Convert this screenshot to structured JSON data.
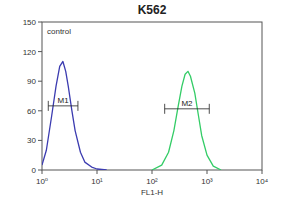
{
  "chart_data": {
    "type": "line",
    "title": "K562",
    "annotation": "control",
    "x_label": "FL1-H",
    "log": "x",
    "xlim": [
      1,
      10000
    ],
    "xticks": [
      {
        "value": 1,
        "label": "10⁰"
      },
      {
        "value": 10,
        "label": "10¹"
      },
      {
        "value": 100,
        "label": "10²"
      },
      {
        "value": 1000,
        "label": "10³"
      },
      {
        "value": 10000,
        "label": "10⁴"
      }
    ],
    "ylim": [
      0,
      150
    ],
    "yticks": [
      0,
      30,
      60,
      90,
      120,
      150
    ],
    "series": [
      {
        "color": "#3b3bb0",
        "x": [
          1,
          1.2,
          1.5,
          1.8,
          2.1,
          2.4,
          2.7,
          3,
          3.5,
          4,
          5,
          6,
          8,
          10,
          15
        ],
        "values": [
          5,
          20,
          55,
          85,
          105,
          110,
          100,
          85,
          60,
          40,
          18,
          8,
          3,
          1,
          0
        ]
      },
      {
        "color": "#33cc66",
        "x": [
          100,
          150,
          200,
          250,
          300,
          350,
          400,
          450,
          500,
          600,
          700,
          800,
          1000,
          1300,
          1800
        ],
        "values": [
          0,
          5,
          18,
          40,
          65,
          85,
          97,
          100,
          95,
          78,
          55,
          35,
          15,
          4,
          0
        ]
      }
    ],
    "gates": [
      {
        "label": "M1",
        "x": [
          1.3,
          4.5
        ],
        "y": 65
      },
      {
        "label": "M2",
        "x": [
          170,
          1100
        ],
        "y": 62
      }
    ]
  }
}
